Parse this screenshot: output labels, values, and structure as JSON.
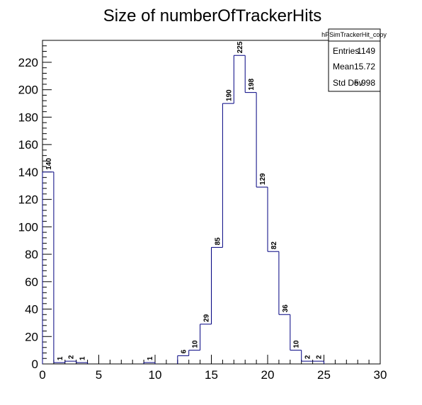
{
  "chart_data": {
    "type": "bar",
    "title": "Size of numberOfTrackerHits",
    "xlabel": "",
    "ylabel": "",
    "xlim": [
      0,
      30
    ],
    "ylim": [
      0,
      236
    ],
    "bin_width": 1,
    "bins": [
      {
        "x": 0,
        "value": 140
      },
      {
        "x": 1,
        "value": 1
      },
      {
        "x": 2,
        "value": 2
      },
      {
        "x": 3,
        "value": 1
      },
      {
        "x": 9,
        "value": 1
      },
      {
        "x": 12,
        "value": 6
      },
      {
        "x": 13,
        "value": 10
      },
      {
        "x": 14,
        "value": 29
      },
      {
        "x": 15,
        "value": 85
      },
      {
        "x": 16,
        "value": 190
      },
      {
        "x": 17,
        "value": 225
      },
      {
        "x": 18,
        "value": 198
      },
      {
        "x": 19,
        "value": 129
      },
      {
        "x": 20,
        "value": 82
      },
      {
        "x": 21,
        "value": 36
      },
      {
        "x": 22,
        "value": 10
      },
      {
        "x": 23,
        "value": 2
      },
      {
        "x": 24,
        "value": 2
      }
    ],
    "x_ticks": [
      0,
      5,
      10,
      15,
      20,
      25,
      30
    ],
    "y_ticks": [
      0,
      20,
      40,
      60,
      80,
      100,
      120,
      140,
      160,
      180,
      200,
      220
    ],
    "line_color": "#000080",
    "grid": false,
    "legend": "none"
  },
  "stats_box": {
    "name": "hPSimTrackerHit_copy",
    "rows": [
      {
        "label": "Entries",
        "value": "1149"
      },
      {
        "label": "Mean",
        "value": "15.72"
      },
      {
        "label": "Std Dev",
        "value": "5.998"
      }
    ]
  }
}
